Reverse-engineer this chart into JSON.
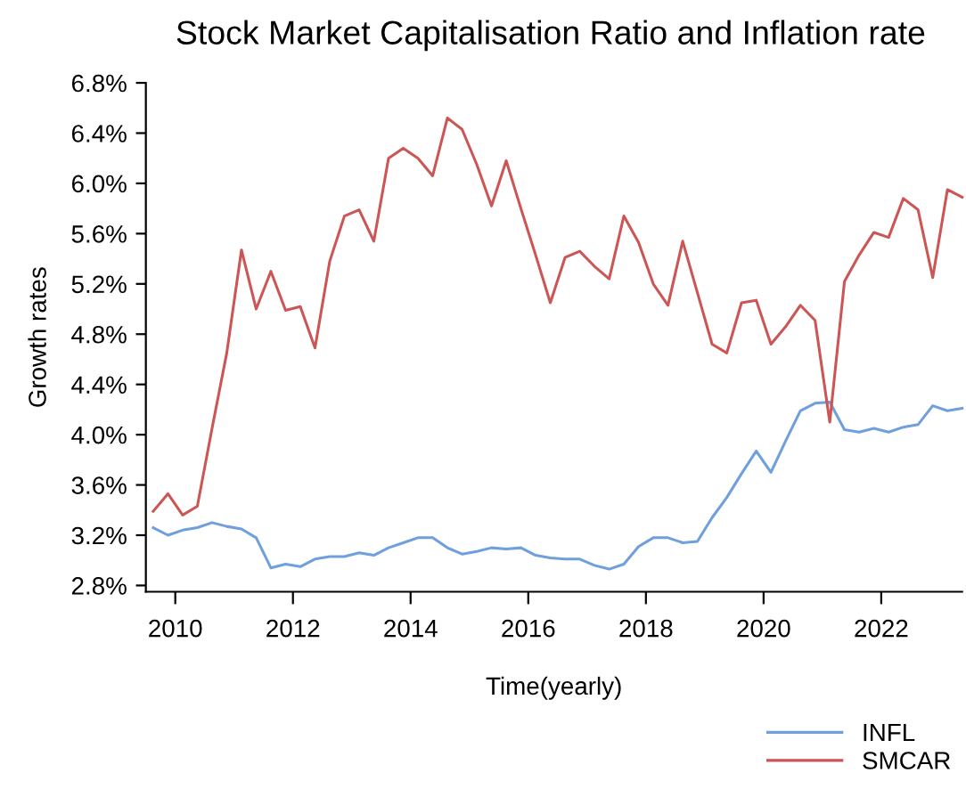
{
  "chart_data": {
    "type": "line",
    "title": "Stock Market Capitalisation Ratio and Inflation rate",
    "xlabel": "Time(yearly)",
    "ylabel": "Growth rates",
    "x": [
      2010.125,
      2010.375,
      2010.625,
      2010.875,
      2011.125,
      2011.375,
      2011.625,
      2011.875,
      2012.125,
      2012.375,
      2012.625,
      2012.875,
      2013.125,
      2013.375,
      2013.625,
      2013.875,
      2014.125,
      2014.375,
      2014.625,
      2014.875,
      2015.125,
      2015.375,
      2015.625,
      2015.875,
      2016.125,
      2016.375,
      2016.625,
      2016.875,
      2017.125,
      2017.375,
      2017.625,
      2017.875,
      2018.125,
      2018.375,
      2018.625,
      2018.875,
      2019.125,
      2019.375,
      2019.625,
      2019.875,
      2020.125,
      2020.375,
      2020.625,
      2020.875,
      2021.125,
      2021.375,
      2021.625,
      2021.875,
      2022.125,
      2022.375,
      2022.625,
      2022.875,
      2023.125,
      2023.375,
      2023.625,
      2023.875
    ],
    "series": [
      {
        "name": "INFL",
        "color": "#6f9fdc",
        "values": [
          3.26,
          3.2,
          3.24,
          3.26,
          3.3,
          3.27,
          3.25,
          3.18,
          2.94,
          2.97,
          2.95,
          3.01,
          3.03,
          3.03,
          3.06,
          3.04,
          3.1,
          3.14,
          3.18,
          3.18,
          3.1,
          3.05,
          3.07,
          3.1,
          3.09,
          3.1,
          3.04,
          3.02,
          3.01,
          3.01,
          2.96,
          2.93,
          2.97,
          3.11,
          3.18,
          3.18,
          3.14,
          3.15,
          3.34,
          3.5,
          3.69,
          3.87,
          3.7,
          3.95,
          4.19,
          4.25,
          4.26,
          4.04,
          4.02,
          4.05,
          4.02,
          4.06,
          4.08,
          4.23,
          4.19,
          4.21
        ]
      },
      {
        "name": "SMCAR",
        "color": "#cc5555",
        "values": [
          3.39,
          3.53,
          3.36,
          3.43,
          4.05,
          4.65,
          5.47,
          5.0,
          5.3,
          4.99,
          5.02,
          4.69,
          5.38,
          5.74,
          5.79,
          5.54,
          6.2,
          6.28,
          6.2,
          6.06,
          6.52,
          6.43,
          6.15,
          5.82,
          6.18,
          5.8,
          5.43,
          5.05,
          5.41,
          5.46,
          5.34,
          5.24,
          5.74,
          5.53,
          5.2,
          5.03,
          5.54,
          5.13,
          4.72,
          4.65,
          5.05,
          5.07,
          4.72,
          4.86,
          5.03,
          4.91,
          4.1,
          5.22,
          5.43,
          5.61,
          5.57,
          5.88,
          5.79,
          5.25,
          5.95,
          5.89
        ]
      }
    ],
    "xlim": [
      2010,
      2023.875
    ],
    "xticks": [
      {
        "value": 2010.5,
        "label": "2010"
      },
      {
        "value": 2012.5,
        "label": "2012"
      },
      {
        "value": 2014.5,
        "label": "2014"
      },
      {
        "value": 2016.5,
        "label": "2016"
      },
      {
        "value": 2018.5,
        "label": "2018"
      },
      {
        "value": 2020.5,
        "label": "2020"
      },
      {
        "value": 2022.5,
        "label": "2022"
      }
    ],
    "ylim": [
      2.75,
      6.8
    ],
    "yticks": [
      {
        "value": 2.8,
        "label": "2.8%"
      },
      {
        "value": 3.2,
        "label": "3.2%"
      },
      {
        "value": 3.6,
        "label": "3.6%"
      },
      {
        "value": 4.0,
        "label": "4.0%"
      },
      {
        "value": 4.4,
        "label": "4.4%"
      },
      {
        "value": 4.8,
        "label": "4.8%"
      },
      {
        "value": 5.2,
        "label": "5.2%"
      },
      {
        "value": 5.6,
        "label": "5.6%"
      },
      {
        "value": 6.0,
        "label": "6.0%"
      },
      {
        "value": 6.4,
        "label": "6.4%"
      },
      {
        "value": 6.8,
        "label": "6.8%"
      }
    ],
    "grid": false,
    "legend": "bottom right",
    "marker": "none",
    "line_style": "solid"
  }
}
